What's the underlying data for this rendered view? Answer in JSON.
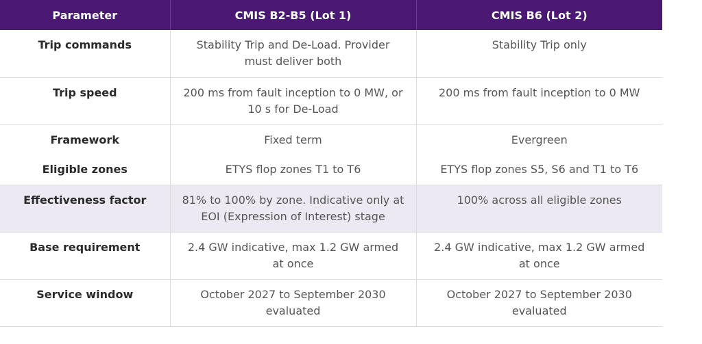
{
  "table": {
    "header": [
      "Parameter",
      "CMIS B2-B5 (Lot 1)",
      "CMIS B6 (Lot 2)"
    ],
    "rows": [
      [
        "Trip commands",
        "Stability Trip and De-Load. Provider must deliver both",
        "Stability Trip only"
      ],
      [
        "Trip speed",
        "200 ms from fault inception to 0 MW, or 10 s for De-Load",
        "200 ms from fault inception to 0 MW"
      ],
      [
        "Framework",
        "Fixed term",
        "Evergreen"
      ],
      [
        "Eligible zones",
        "ETYS flop zones T1 to T6",
        "ETYS flop zones S5, S6 and T1 to T6"
      ],
      [
        "Effectiveness factor",
        "81% to 100% by zone. Indicative only at EOI (Expression of Interest) stage",
        "100% across all eligible zones"
      ],
      [
        "Base requirement",
        "2.4 GW indicative, max 1.2 GW armed at once",
        "2.4 GW indicative, max 1.2 GW armed at once"
      ],
      [
        "Service window",
        "October 2027 to September 2030 evaluated",
        "October 2027 to September 2030 evaluated"
      ]
    ]
  }
}
